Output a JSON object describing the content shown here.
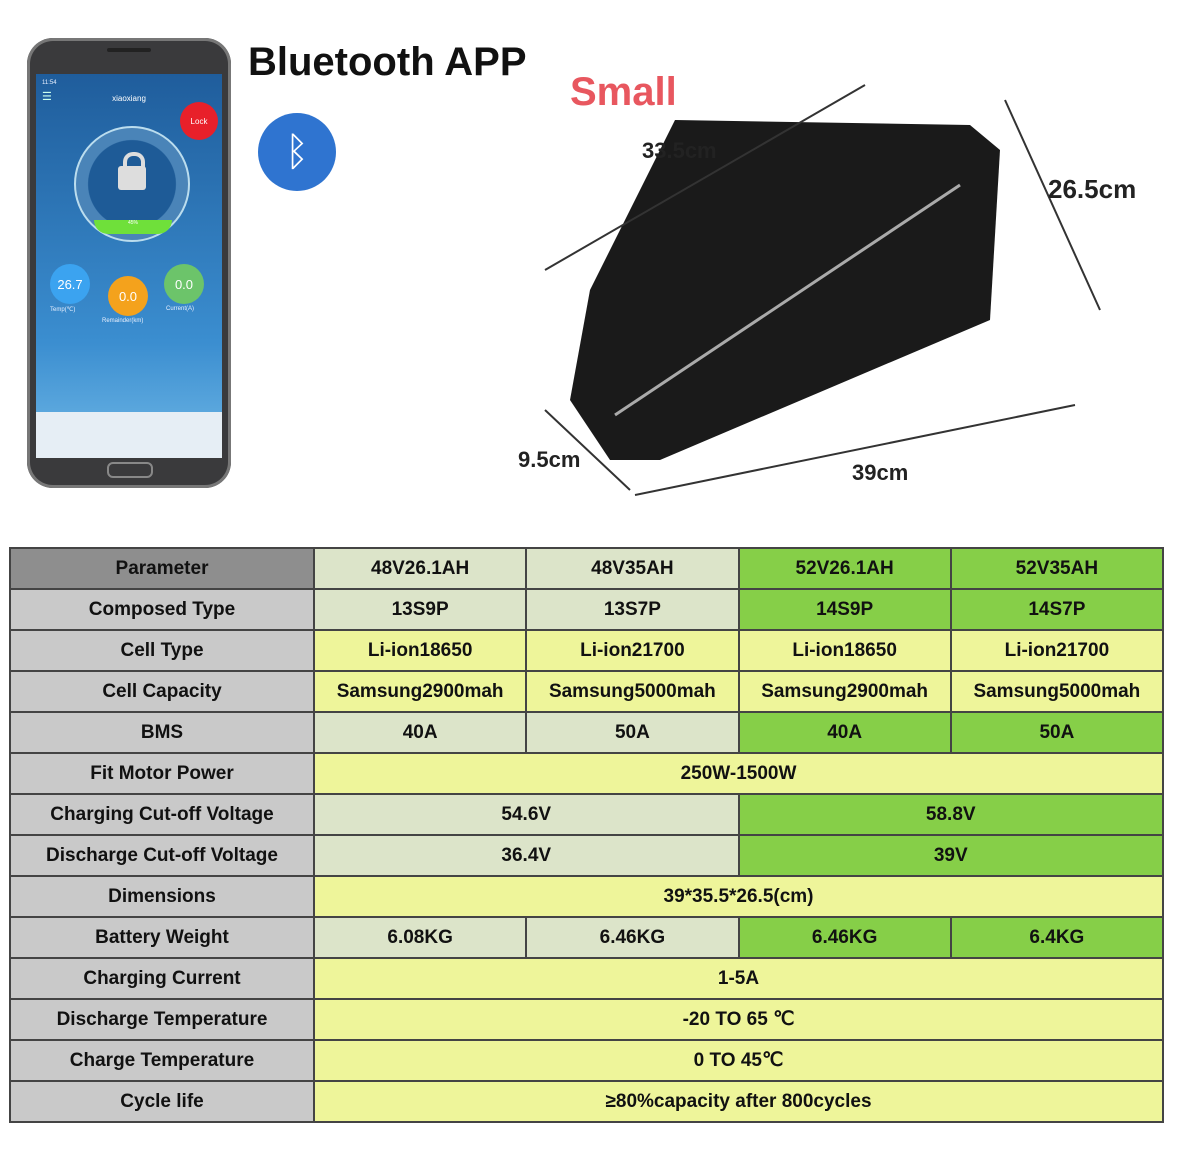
{
  "header": {
    "title": "Bluetooth APP",
    "size_label": "Small"
  },
  "phone": {
    "time": "11:54",
    "app_name": "xiaoxiang",
    "lock_button": "Lock",
    "percent": "45%",
    "gauges": [
      {
        "value": "26.7",
        "label": "Temp(℃)",
        "color": "#3ba3f0"
      },
      {
        "value": "0.0",
        "label": "Remainder(km)",
        "color": "#f4a21c"
      },
      {
        "value": "0.0",
        "label": "Current(A)",
        "color": "#6cc46a"
      }
    ]
  },
  "bag": {
    "dims": {
      "top": "33.5cm",
      "side": "26.5cm",
      "depth": "9.5cm",
      "bottom": "39cm"
    }
  },
  "colors": {
    "header": "#8e8e8e",
    "label": "#c9c9c9",
    "light_green": "#dce4c9",
    "green": "#86cf48",
    "yellow": "#eef59a",
    "lock": "#e8202a"
  },
  "table": {
    "rows": [
      {
        "label": "Parameter",
        "cells": [
          "48V26.1AH",
          "48V35AH",
          "52V26.1AH",
          "52V35AH"
        ]
      },
      {
        "label": "Composed Type",
        "cells": [
          "13S9P",
          "13S7P",
          "14S9P",
          "14S7P"
        ]
      },
      {
        "label": "Cell Type",
        "cells": [
          "Li-ion18650",
          "Li-ion21700",
          "Li-ion18650",
          "Li-ion21700"
        ]
      },
      {
        "label": "Cell Capacity",
        "cells": [
          "Samsung2900mah",
          "Samsung5000mah",
          "Samsung2900mah",
          "Samsung5000mah"
        ]
      },
      {
        "label": "BMS",
        "cells": [
          "40A",
          "50A",
          "40A",
          "50A"
        ]
      },
      {
        "label": "Fit Motor Power",
        "cells": [
          "250W-1500W"
        ]
      },
      {
        "label": "Charging Cut-off Voltage",
        "cells": [
          "54.6V",
          "58.8V"
        ]
      },
      {
        "label": "Discharge Cut-off Voltage",
        "cells": [
          "36.4V",
          "39V"
        ]
      },
      {
        "label": "Dimensions",
        "cells": [
          "39*35.5*26.5(cm)"
        ]
      },
      {
        "label": "Battery Weight",
        "cells": [
          "6.08KG",
          "6.46KG",
          "6.46KG",
          "6.4KG"
        ]
      },
      {
        "label": "Charging Current",
        "cells": [
          "1-5A"
        ]
      },
      {
        "label": "Discharge Temperature",
        "cells": [
          "-20 TO 65 ℃"
        ]
      },
      {
        "label": "Charge Temperature",
        "cells": [
          "0 TO 45℃"
        ]
      },
      {
        "label": "Cycle life",
        "cells": [
          "≥80%capacity after 800cycles"
        ]
      }
    ]
  }
}
